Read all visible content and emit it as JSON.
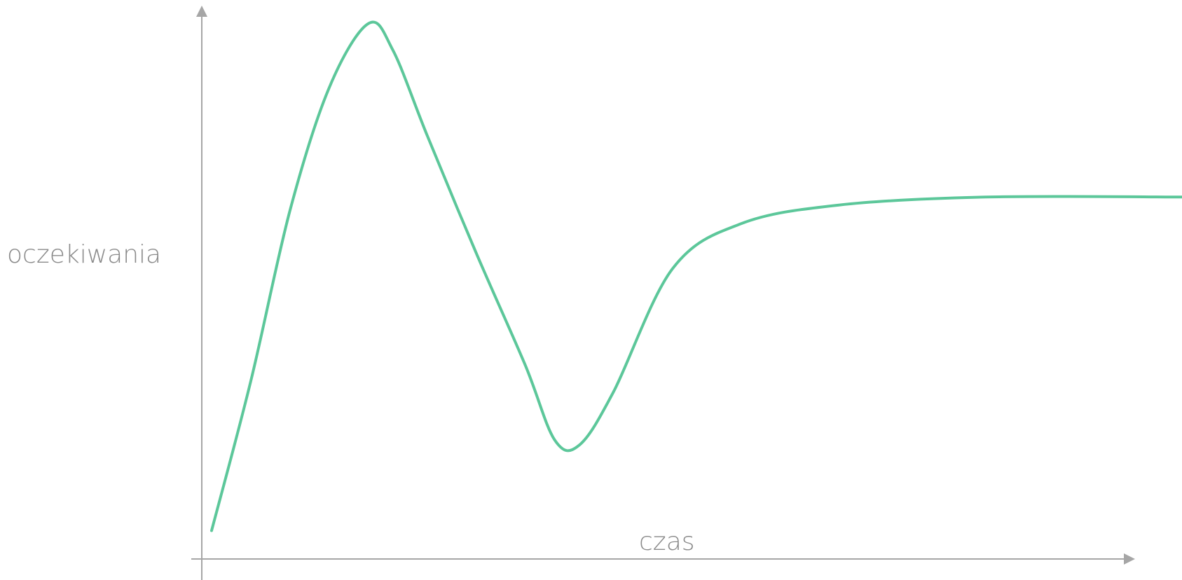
{
  "chart_data": {
    "type": "line",
    "title": "",
    "xlabel": "czas",
    "ylabel": "oczekiwania",
    "grid": false,
    "legend": "none",
    "xlim": [
      0,
      10
    ],
    "ylim": [
      0,
      10
    ],
    "series": [
      {
        "color": "#5cc79a",
        "points": [
          [
            0.1,
            0.4
          ],
          [
            0.5,
            3.2
          ],
          [
            0.9,
            6.4
          ],
          [
            1.3,
            8.7
          ],
          [
            1.7,
            9.9
          ],
          [
            1.95,
            9.4
          ],
          [
            2.3,
            7.8
          ],
          [
            2.8,
            5.6
          ],
          [
            3.3,
            3.5
          ],
          [
            3.6,
            2.1
          ],
          [
            3.85,
            2.0
          ],
          [
            4.2,
            3.0
          ],
          [
            4.8,
            5.3
          ],
          [
            5.5,
            6.15
          ],
          [
            6.5,
            6.5
          ],
          [
            8.0,
            6.65
          ],
          [
            10.0,
            6.65
          ]
        ]
      }
    ]
  },
  "colors": {
    "axis": "#a0a0a0",
    "line": "#5cc79a",
    "label": "#8a8a8a"
  }
}
